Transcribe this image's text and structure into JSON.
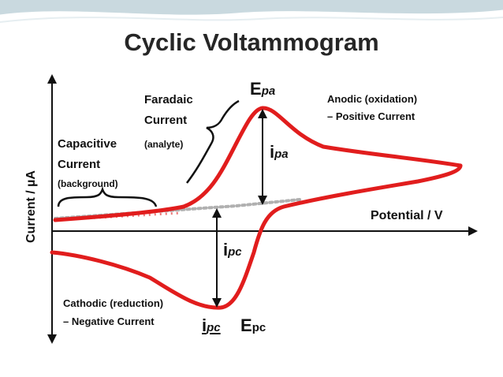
{
  "title": "Cyclic Voltammogram",
  "axes": {
    "ylabel": "Current / µA",
    "xlabel": "Potential / V"
  },
  "annotations": {
    "epa": {
      "main": "E",
      "sub": "pa"
    },
    "ipa": {
      "main": "i",
      "sub": "pa"
    },
    "ipc": {
      "main": "i",
      "sub": "pc"
    },
    "ipc_bottom": {
      "main": "i",
      "sub": "pc"
    },
    "epc": {
      "main": "E",
      "sub": "pc"
    },
    "faradaic": {
      "line1": "Faradaic",
      "line2": "Current",
      "note": "(analyte)"
    },
    "capacitive": {
      "line1": "Capacitive",
      "line2": "Current",
      "note": "(background)"
    },
    "anodic": {
      "line1": "Anodic (oxidation)",
      "line2": "– Positive Current"
    },
    "cathodic": {
      "line1": "Cathodic (reduction)",
      "line2": "– Negative Current"
    }
  },
  "colors": {
    "curve": "#e11d1d",
    "background_line": "#b0b0b0",
    "axis": "#111111",
    "banner": "#c9d9df"
  }
}
